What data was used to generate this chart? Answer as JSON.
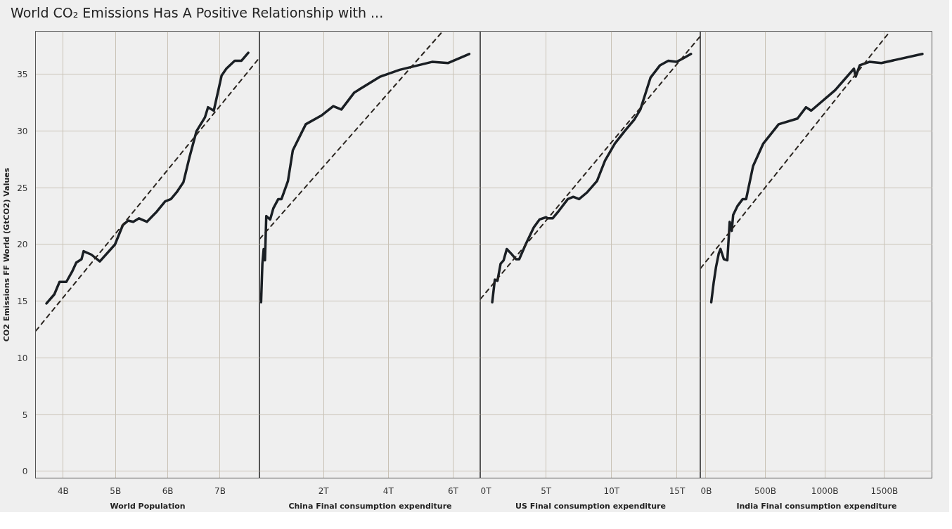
{
  "chart_data": [
    {
      "type": "line",
      "title": "World CO₂ Emissions Has A Positive Relationship with ...",
      "xlabel": "World Population",
      "ylabel": "CO2 Emissions FF World (GtCO2) Values",
      "xlim": [
        3.47,
        7.76
      ],
      "xticks": [
        {
          "value": 4,
          "label": "4B"
        },
        {
          "value": 5,
          "label": "5B"
        },
        {
          "value": 6,
          "label": "6B"
        },
        {
          "value": 7,
          "label": "7B"
        }
      ],
      "ylim": [
        -0.6,
        38.8
      ],
      "yticks": [
        0,
        5,
        10,
        15,
        20,
        25,
        30,
        35
      ],
      "grid": true,
      "series": [
        {
          "color": "#1a1f24",
          "line_style": "solid",
          "x": [
            3.68,
            3.83,
            3.93,
            4.06,
            4.17,
            4.25,
            4.35,
            4.39,
            4.54,
            4.7,
            4.99,
            5.14,
            5.24,
            5.34,
            5.45,
            5.6,
            5.79,
            5.95,
            6.06,
            6.17,
            6.3,
            6.41,
            6.55,
            6.71,
            6.77,
            6.88,
            7.03,
            7.12,
            7.28,
            7.41,
            7.54
          ],
          "values": [
            14.8,
            15.6,
            16.7,
            16.7,
            17.6,
            18.4,
            18.7,
            19.4,
            19.1,
            18.5,
            20.0,
            21.7,
            22.1,
            22.0,
            22.3,
            22.0,
            22.9,
            23.8,
            24.0,
            24.6,
            25.5,
            27.6,
            30.0,
            31.2,
            32.1,
            31.8,
            34.9,
            35.5,
            36.2,
            36.2,
            36.9
          ]
        },
        {
          "color": "#2a2520",
          "line_style": "dashed",
          "x": [
            3.48,
            7.76
          ],
          "values": [
            12.4,
            36.5
          ]
        }
      ]
    },
    {
      "type": "line",
      "xlabel": "China Final consumption expenditure",
      "xlim": [
        0.03,
        6.85
      ],
      "xticks": [
        {
          "value": 2,
          "label": "2T"
        },
        {
          "value": 4,
          "label": "4T"
        },
        {
          "value": 6,
          "label": "6T"
        }
      ],
      "ylim": [
        -0.6,
        38.8
      ],
      "yticks": [
        0,
        5,
        10,
        15,
        20,
        25,
        30,
        35
      ],
      "tick_labels": "x",
      "grid": true,
      "series": [
        {
          "color": "#1a1f24",
          "line_style": "solid",
          "x": [
            0.07,
            0.11,
            0.15,
            0.19,
            0.23,
            0.35,
            0.45,
            0.6,
            0.7,
            0.9,
            1.05,
            1.45,
            1.95,
            2.3,
            2.55,
            2.95,
            3.75,
            4.35,
            5.35,
            5.85,
            6.5
          ],
          "values": [
            14.9,
            18.3,
            19.6,
            18.6,
            22.5,
            22.2,
            23.2,
            24.0,
            24.0,
            25.6,
            28.3,
            30.6,
            31.4,
            32.2,
            31.9,
            33.4,
            34.8,
            35.4,
            36.1,
            36.0,
            36.8
          ]
        },
        {
          "color": "#2a2520",
          "line_style": "dashed",
          "x": [
            0.03,
            5.65
          ],
          "values": [
            20.5,
            38.7
          ]
        }
      ]
    },
    {
      "type": "line",
      "xlabel": "US Final consumption expenditure",
      "xlim": [
        0,
        16.8
      ],
      "xticks": [
        {
          "value": 0,
          "label": "0T"
        },
        {
          "value": 5,
          "label": "5T"
        },
        {
          "value": 10,
          "label": "10T"
        },
        {
          "value": 15,
          "label": "15T"
        }
      ],
      "ylim": [
        -0.6,
        38.8
      ],
      "yticks": [
        0,
        5,
        10,
        15,
        20,
        25,
        30,
        35
      ],
      "tick_labels": "x",
      "grid": true,
      "series": [
        {
          "color": "#1a1f24",
          "line_style": "solid",
          "x": [
            0.89,
            1.09,
            1.29,
            1.53,
            1.76,
            2.0,
            2.33,
            2.7,
            2.95,
            3.44,
            4.06,
            4.5,
            5.0,
            5.12,
            5.5,
            6.0,
            6.66,
            7.08,
            7.52,
            8.14,
            8.89,
            9.5,
            10.25,
            11.0,
            11.73,
            12.2,
            12.97,
            13.7,
            14.33,
            14.95,
            15.45,
            16.06
          ],
          "values": [
            14.9,
            16.9,
            16.8,
            18.3,
            18.6,
            19.6,
            19.2,
            18.7,
            18.7,
            20.0,
            21.5,
            22.2,
            22.4,
            22.3,
            22.3,
            23.0,
            24.0,
            24.2,
            24.0,
            24.6,
            25.6,
            27.4,
            28.9,
            30.0,
            31.0,
            31.9,
            34.7,
            35.8,
            36.2,
            36.1,
            36.4,
            36.8
          ]
        },
        {
          "color": "#2a2520",
          "line_style": "dashed",
          "x": [
            0,
            16.8
          ],
          "values": [
            15.2,
            38.4
          ]
        }
      ]
    },
    {
      "type": "line",
      "xlabel": "India Final consumption expenditure",
      "xlim": [
        -43,
        1905
      ],
      "xticks": [
        {
          "value": 0,
          "label": "0B"
        },
        {
          "value": 500,
          "label": "500B"
        },
        {
          "value": 1000,
          "label": "1000B"
        },
        {
          "value": 1500,
          "label": "1500B"
        }
      ],
      "ylim": [
        -0.6,
        38.8
      ],
      "yticks": [
        0,
        5,
        10,
        15,
        20,
        25,
        30,
        35
      ],
      "tick_labels": "x",
      "grid": true,
      "series": [
        {
          "color": "#1a1f24",
          "line_style": "solid",
          "x": [
            46,
            66,
            86,
            109,
            124,
            152,
            181,
            201,
            218,
            230,
            267,
            310,
            339,
            397,
            483,
            612,
            770,
            842,
            885,
            1086,
            1244,
            1259,
            1293,
            1374,
            1474,
            1603,
            1819
          ],
          "values": [
            14.9,
            16.6,
            18.0,
            19.2,
            19.6,
            18.7,
            18.6,
            22.0,
            21.2,
            22.6,
            23.4,
            24.0,
            24.0,
            26.9,
            28.9,
            30.6,
            31.1,
            32.1,
            31.8,
            33.6,
            35.5,
            34.8,
            35.8,
            36.1,
            36.0,
            36.3,
            36.8
          ]
        },
        {
          "color": "#2a2520",
          "line_style": "dashed",
          "x": [
            -43,
            1540
          ],
          "values": [
            17.9,
            38.7
          ]
        }
      ]
    }
  ]
}
